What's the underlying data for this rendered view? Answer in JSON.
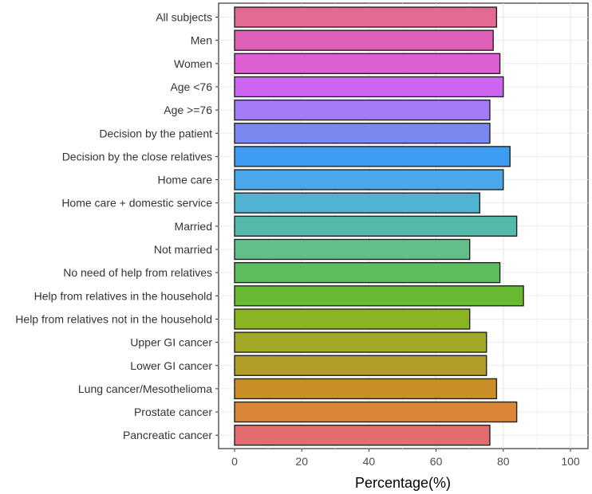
{
  "chart_data": {
    "type": "bar",
    "orientation": "horizontal",
    "title": "",
    "xlabel": "Percentage(%)",
    "ylabel": "",
    "xlim": [
      0,
      105
    ],
    "xticks": [
      0,
      20,
      40,
      60,
      80,
      100
    ],
    "xtick_labels": [
      "0",
      "20",
      "40",
      "60",
      "80",
      "100"
    ],
    "grid": true,
    "legend": "none",
    "categories": [
      "All subjects",
      "Men",
      "Women",
      "Age <76",
      "Age >=76",
      "Decision by the patient",
      "Decision by the close relatives",
      "Home care",
      "Home care + domestic service",
      "Married",
      "Not married",
      "No need of help from relatives",
      "Help from relatives in the household",
      "Help from relatives not in the household",
      "Upper GI cancer",
      "Lower GI cancer",
      "Lung cancer/Mesothelioma",
      "Prostate cancer",
      "Pancreatic cancer"
    ],
    "values": [
      78,
      77,
      79,
      80,
      76,
      76,
      82,
      80,
      73,
      84,
      70,
      79,
      86,
      70,
      75,
      75,
      78,
      84,
      76
    ],
    "colors": [
      "#e36b93",
      "#e05fb6",
      "#de5fd3",
      "#cc66f0",
      "#a47cf9",
      "#7b88f0",
      "#3d9df2",
      "#4aa7e9",
      "#50b3cf",
      "#55b9a9",
      "#63bf8a",
      "#5ebd5f",
      "#67b92f",
      "#8ab423",
      "#a2a824",
      "#b09c26",
      "#c98e28",
      "#d98638",
      "#e26c6e"
    ]
  }
}
